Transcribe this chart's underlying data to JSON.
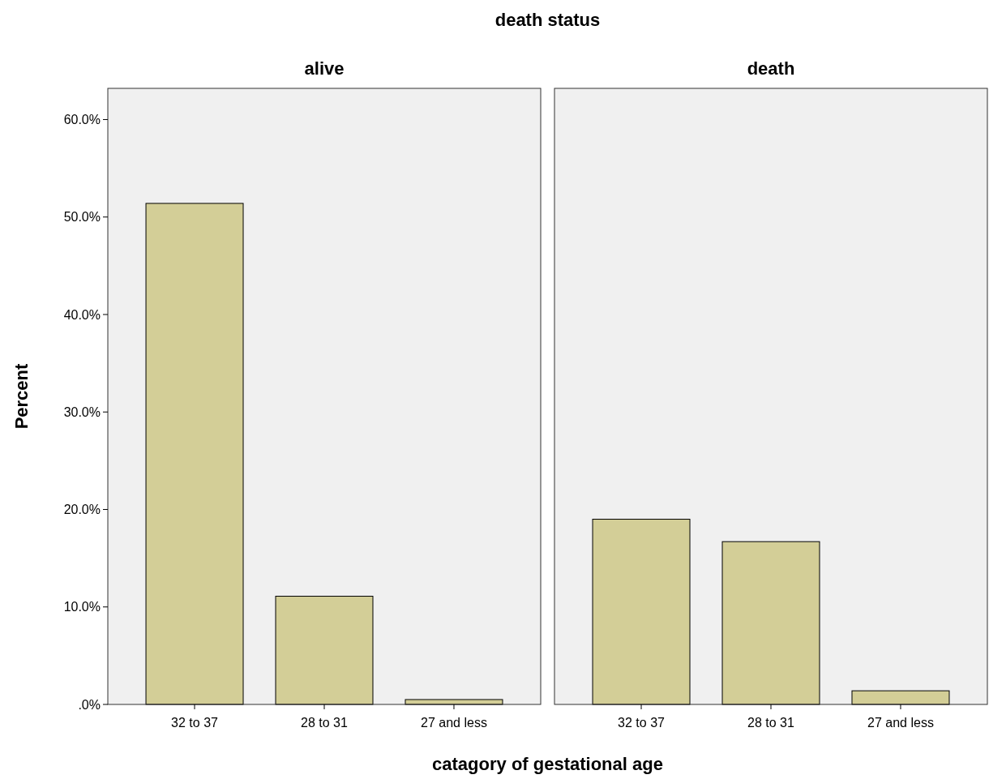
{
  "chart_data": [
    {
      "type": "bar",
      "title": "alive",
      "annotations": [
        "death status"
      ],
      "xlabel": "catagory of gestational age",
      "ylabel": "Percent",
      "categories": [
        "32 to 37",
        "28 to 31",
        "27 and less"
      ],
      "values": [
        51.4,
        11.1,
        0.5
      ],
      "color": "#d3ce97",
      "ylim": [
        0,
        63.2
      ],
      "yticks": [
        {
          "value": 0,
          "label": ".0%"
        },
        {
          "value": 10,
          "label": "10.0%"
        },
        {
          "value": 20,
          "label": "20.0%"
        },
        {
          "value": 30,
          "label": "30.0%"
        },
        {
          "value": 40,
          "label": "40.0%"
        },
        {
          "value": 50,
          "label": "50.0%"
        },
        {
          "value": 60,
          "label": "60.0%"
        }
      ],
      "grid": false
    },
    {
      "type": "bar",
      "title": "death",
      "categories": [
        "32 to 37",
        "28 to 31",
        "27 and less"
      ],
      "values": [
        19.0,
        16.7,
        1.4
      ],
      "color": "#d3ce97",
      "ylim": [
        0,
        63.2
      ],
      "grid": false,
      "tick_labels": "x"
    }
  ]
}
